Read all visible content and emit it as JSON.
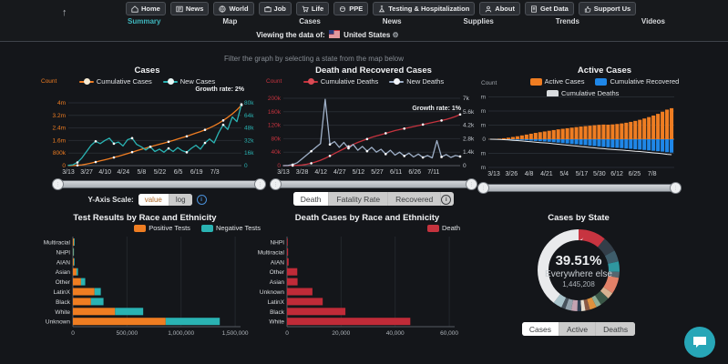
{
  "header": {
    "scroll_top_icon": "↑",
    "nav": [
      {
        "label": "Home",
        "icon": "home-icon"
      },
      {
        "label": "News",
        "icon": "news-icon"
      },
      {
        "label": "World",
        "icon": "world-icon"
      },
      {
        "label": "Job",
        "icon": "job-icon"
      },
      {
        "label": "Life",
        "icon": "life-icon"
      },
      {
        "label": "PPE",
        "icon": "ppe-icon"
      },
      {
        "label": "Testing & Hospitalization",
        "icon": "testing-icon"
      },
      {
        "label": "About",
        "icon": "about-icon"
      },
      {
        "label": "Get Data",
        "icon": "getdata-icon"
      },
      {
        "label": "Support Us",
        "icon": "support-icon"
      }
    ],
    "tabs": [
      "Summary",
      "Map",
      "Cases",
      "News",
      "Supplies",
      "Trends",
      "Videos"
    ],
    "active_tab": "Summary",
    "viewing_prefix": "Viewing the data of:",
    "viewing_country": "United States",
    "gear_icon": "⚙"
  },
  "filter_hint": "Filter the graph by selecting a state from the map below",
  "controls": {
    "y_axis_scale": {
      "label": "Y-Axis Scale:",
      "options": [
        "value",
        "log"
      ],
      "selected": "value"
    },
    "death_toggle": {
      "options": [
        "Death",
        "Fatality Rate",
        "Recovered"
      ],
      "selected": "Death"
    },
    "state_toggle": {
      "options": [
        "Cases",
        "Active",
        "Deaths"
      ],
      "selected": "Cases"
    }
  },
  "chart_data": [
    {
      "id": "cases",
      "type": "dual_line",
      "title": "Cases",
      "growth_label": "Growth rate: 2%",
      "axis_name": "Count",
      "legend": [
        {
          "line": "#ef7d22",
          "dot": "#f7ead2",
          "label": "Cumulative Cases"
        },
        {
          "line": "#2ab3b3",
          "dot": "#e8f7f5",
          "label": "New Cases"
        }
      ],
      "left_axis": {
        "color": "#ef7d22",
        "max": 4,
        "ticks": [
          {
            "v": 0,
            "label": "0"
          },
          {
            "v": 0.8,
            "label": "800k"
          },
          {
            "v": 1.6,
            "label": "1.6m"
          },
          {
            "v": 2.4,
            "label": "2.4m"
          },
          {
            "v": 3.2,
            "label": "3.2m"
          },
          {
            "v": 4,
            "label": "4m"
          }
        ]
      },
      "right_axis": {
        "color": "#2ab3b3",
        "max": 80,
        "ticks": [
          {
            "v": 0,
            "label": "0"
          },
          {
            "v": 16,
            "label": "16k"
          },
          {
            "v": 32,
            "label": "32k"
          },
          {
            "v": 48,
            "label": "48k"
          },
          {
            "v": 64,
            "label": "64k"
          },
          {
            "v": 80,
            "label": "80k"
          }
        ]
      },
      "x_labels": [
        "3/13",
        "3/27",
        "4/10",
        "4/24",
        "5/8",
        "5/22",
        "6/5",
        "6/19",
        "7/3"
      ],
      "series": [
        {
          "name": "Cumulative Cases",
          "axis": "left",
          "color": "#ef7d22",
          "values": [
            0,
            0.005,
            0.02,
            0.05,
            0.1,
            0.16,
            0.23,
            0.3,
            0.37,
            0.44,
            0.52,
            0.6,
            0.68,
            0.77,
            0.86,
            0.95,
            1.04,
            1.12,
            1.2,
            1.28,
            1.36,
            1.44,
            1.52,
            1.6,
            1.69,
            1.78,
            1.87,
            1.97,
            2.07,
            2.17,
            2.28,
            2.4,
            2.54,
            2.7,
            2.88,
            3.08,
            3.3,
            3.55,
            3.85
          ]
        },
        {
          "name": "New Cases",
          "axis": "right",
          "color": "#2ab3b3",
          "values": [
            0.3,
            1,
            4,
            10,
            18,
            26,
            31,
            28,
            32,
            35,
            28,
            30,
            25,
            33,
            35,
            27,
            24,
            20,
            24,
            18,
            21,
            17,
            22,
            18,
            23,
            19,
            17,
            22,
            26,
            21,
            29,
            34,
            29,
            42,
            52,
            46,
            62,
            56,
            78
          ]
        }
      ]
    },
    {
      "id": "deaths",
      "type": "dual_line",
      "title": "Death and Recovered Cases",
      "growth_label": "Growth rate: 1%",
      "axis_name": "Count",
      "legend": [
        {
          "line": "#c5333e",
          "dot": "#d84b55",
          "label": "Cumulative Deaths"
        },
        {
          "line": "#9fb0c8",
          "dot": "#f2f4f8",
          "label": "New Deaths"
        }
      ],
      "left_axis": {
        "color": "#c5333e",
        "max": 200,
        "ticks": [
          {
            "v": 0,
            "label": "0"
          },
          {
            "v": 40,
            "label": "40k"
          },
          {
            "v": 80,
            "label": "80k"
          },
          {
            "v": 120,
            "label": "120k"
          },
          {
            "v": 160,
            "label": "160k"
          },
          {
            "v": 200,
            "label": "200k"
          }
        ]
      },
      "right_axis": {
        "color": "#c3c8cf",
        "max": 7,
        "ticks": [
          {
            "v": 0,
            "label": "0"
          },
          {
            "v": 1.4,
            "label": "1.4k"
          },
          {
            "v": 2.8,
            "label": "2.8k"
          },
          {
            "v": 4.2,
            "label": "4.2k"
          },
          {
            "v": 5.6,
            "label": "5.6k"
          },
          {
            "v": 7,
            "label": "7k"
          }
        ]
      },
      "x_labels": [
        "3/13",
        "3/28",
        "4/12",
        "4/27",
        "5/12",
        "5/27",
        "6/11",
        "6/26",
        "7/11"
      ],
      "series": [
        {
          "name": "Cumulative Deaths",
          "axis": "left",
          "color": "#c5333e",
          "values": [
            0,
            0.05,
            0.3,
            0.8,
            2,
            4,
            7,
            11,
            16,
            22,
            29,
            36,
            43,
            50,
            57,
            63,
            69,
            74,
            79,
            84,
            88,
            92,
            96,
            100,
            104,
            107,
            110,
            113,
            116,
            119,
            122,
            125,
            128,
            131,
            134,
            137,
            141,
            146,
            152
          ]
        },
        {
          "name": "New Deaths",
          "axis": "right",
          "color": "#9fb0c8",
          "values": [
            0,
            0.02,
            0.1,
            0.3,
            0.7,
            1.1,
            1.5,
            1.9,
            2.3,
            6.9,
            2.2,
            2.5,
            1.9,
            2.4,
            1.8,
            2.2,
            1.6,
            2.0,
            1.5,
            1.9,
            1.4,
            1.7,
            1.2,
            1.6,
            1.1,
            1.4,
            1.0,
            1.3,
            0.9,
            1.2,
            0.85,
            1.05,
            0.8,
            2.6,
            0.9,
            1.15,
            0.85,
            1.05,
            0.95
          ]
        }
      ]
    },
    {
      "id": "active",
      "type": "diverging_bar",
      "title": "Active Cases",
      "axis_name": "Count",
      "legend": [
        {
          "color": "#ef7d22",
          "label": "Active Cases"
        },
        {
          "color": "#1f87e8",
          "label": "Cumulative Recovered"
        },
        {
          "color": "#d9dcdf",
          "label": "Cumulative Deaths"
        }
      ],
      "ticks": [
        {
          "v": 3,
          "label": "3m"
        },
        {
          "v": 2,
          "label": "2m"
        },
        {
          "v": 1,
          "label": "1m"
        },
        {
          "v": 0,
          "label": "0"
        },
        {
          "v": -1,
          "label": "1m"
        },
        {
          "v": -2,
          "label": "2m"
        }
      ],
      "x_labels": [
        "3/13",
        "3/26",
        "4/8",
        "4/21",
        "5/4",
        "5/17",
        "5/30",
        "6/12",
        "6/25",
        "7/8"
      ],
      "up_series": {
        "name": "Active Cases",
        "color": "#ef7d22",
        "values": [
          0.01,
          0.02,
          0.04,
          0.07,
          0.11,
          0.16,
          0.21,
          0.27,
          0.33,
          0.39,
          0.45,
          0.5,
          0.55,
          0.6,
          0.65,
          0.7,
          0.74,
          0.78,
          0.82,
          0.86,
          0.9,
          0.93,
          0.96,
          0.99,
          1.02,
          1.04,
          1.03,
          1.05,
          1.08,
          1.12,
          1.17,
          1.23,
          1.3,
          1.38,
          1.47,
          1.57,
          1.68,
          1.8,
          1.95,
          2.1,
          2.2
        ]
      },
      "down_series": {
        "name": "Cumulative Recovered",
        "color": "#1f87e8",
        "values": [
          0,
          0.005,
          0.01,
          0.02,
          0.03,
          0.04,
          0.05,
          0.06,
          0.08,
          0.1,
          0.12,
          0.14,
          0.16,
          0.18,
          0.21,
          0.24,
          0.27,
          0.3,
          0.33,
          0.36,
          0.39,
          0.42,
          0.45,
          0.48,
          0.51,
          0.54,
          0.57,
          0.59,
          0.61,
          0.63,
          0.66,
          0.68,
          0.71,
          0.73,
          0.76,
          0.79,
          0.82,
          0.85,
          0.88,
          0.92,
          0.95
        ]
      },
      "line_series": {
        "name": "Cumulative Deaths",
        "color": "#e6e8ea",
        "values": [
          0,
          0.001,
          0.004,
          0.01,
          0.02,
          0.035,
          0.05,
          0.062,
          0.072,
          0.082,
          0.09,
          0.096,
          0.101,
          0.106,
          0.11,
          0.113,
          0.116,
          0.119,
          0.121,
          0.123,
          0.125,
          0.127,
          0.129,
          0.131,
          0.132,
          0.134,
          0.135,
          0.136,
          0.137,
          0.138,
          0.139,
          0.14,
          0.141,
          0.142,
          0.143,
          0.144,
          0.145,
          0.146,
          0.147,
          0.148,
          0.149
        ]
      }
    },
    {
      "id": "tests",
      "type": "stacked_hbar",
      "title": "Test Results by Race and Ethnicity",
      "legend": [
        {
          "color": "#ef7d22",
          "label": "Positive Tests"
        },
        {
          "color": "#2ab3b3",
          "label": "Negative Tests"
        }
      ],
      "categories": [
        "Multiracial",
        "NHPI",
        "AIAN",
        "Asian",
        "Other",
        "LatinX",
        "Black",
        "White",
        "Unknown"
      ],
      "series": [
        {
          "name": "Positive Tests",
          "color": "#ef7d22",
          "values": [
            10000,
            3000,
            9000,
            33000,
            75000,
            200000,
            167000,
            390000,
            858000
          ]
        },
        {
          "name": "Negative Tests",
          "color": "#2ab3b3",
          "values": [
            2000,
            1000,
            3000,
            14000,
            39000,
            58000,
            116000,
            260000,
            500000
          ]
        }
      ],
      "x_ticks": [
        {
          "v": 0,
          "label": "0"
        },
        {
          "v": 500000,
          "label": "500,000"
        },
        {
          "v": 1000000,
          "label": "1,000,000"
        },
        {
          "v": 1500000,
          "label": "1,500,000"
        }
      ],
      "x_max": 1550000
    },
    {
      "id": "deaths_race",
      "type": "stacked_hbar",
      "title": "Death Cases by Race and Ethnicity",
      "legend": [
        {
          "color": "#c5333e",
          "label": "Death"
        }
      ],
      "categories": [
        "NHPI",
        "Multiracial",
        "AIAN",
        "Other",
        "Asian",
        "Unknown",
        "LatinX",
        "Black",
        "White"
      ],
      "series": [
        {
          "name": "Death",
          "color": "#c02b38",
          "values": [
            150,
            400,
            600,
            3800,
            3900,
            9400,
            13200,
            21600,
            45600
          ]
        }
      ],
      "x_ticks": [
        {
          "v": 0,
          "label": "0"
        },
        {
          "v": 20000,
          "label": "20,000"
        },
        {
          "v": 40000,
          "label": "40,000"
        },
        {
          "v": 60000,
          "label": "60,000"
        }
      ],
      "x_max": 62000
    },
    {
      "id": "by_state",
      "type": "donut",
      "title": "Cases by State",
      "center": {
        "percent": "39.51%",
        "label": "Everywhere else",
        "value": "1,445,208"
      },
      "segments": [
        {
          "color": "#c73440",
          "percent": 11
        },
        {
          "color": "#333e49",
          "percent": 6
        },
        {
          "color": "#3e5d6b",
          "percent": 4.5
        },
        {
          "color": "#2f97a0",
          "percent": 4.2
        },
        {
          "color": "#56666f",
          "percent": 2.3
        },
        {
          "color": "#e28168",
          "percent": 6.5
        },
        {
          "color": "#d8b291",
          "percent": 2.6
        },
        {
          "color": "#3b5848",
          "percent": 3.7
        },
        {
          "color": "#8fae96",
          "percent": 2.0
        },
        {
          "color": "#df913d",
          "percent": 2.7
        },
        {
          "color": "#8a5a44",
          "percent": 1.8
        },
        {
          "color": "#e8decd",
          "percent": 1.6
        },
        {
          "color": "#2e3e52",
          "percent": 1.6
        },
        {
          "color": "#c3a3b2",
          "percent": 2.4
        },
        {
          "color": "#93a2ad",
          "percent": 2.4
        },
        {
          "color": "#47525c",
          "percent": 1.6
        },
        {
          "color": "#a9c4cc",
          "percent": 3.5
        }
      ],
      "other": {
        "color": "#e9eaec",
        "percent": 39.51
      }
    }
  ]
}
